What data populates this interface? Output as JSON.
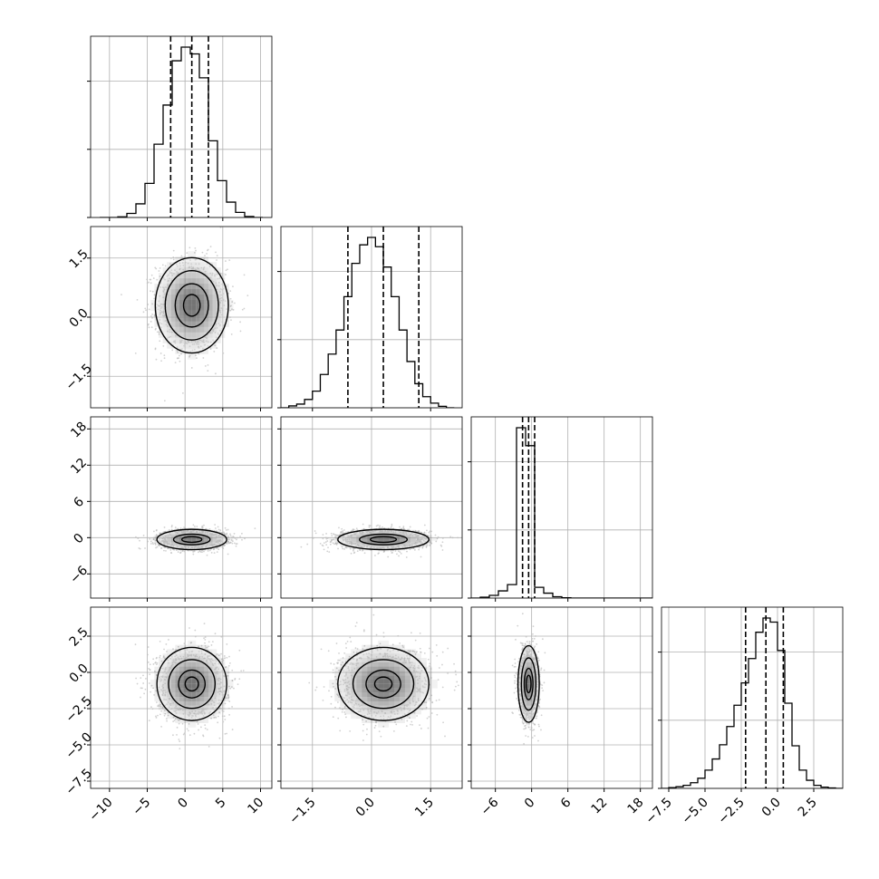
{
  "chart_data": {
    "type": "corner",
    "variables": [
      {
        "lim": [
          -12.5,
          11.5
        ],
        "ticks": [
          -10,
          -5,
          0,
          5,
          10
        ],
        "tick_labels": [
          "−10",
          "−5",
          "0",
          "5",
          "10"
        ],
        "quantiles": [
          -1.9,
          0.9,
          3.1
        ],
        "hist": {
          "edges": [
            -11.3,
            -10.1,
            -8.9,
            -7.7,
            -6.5,
            -5.3,
            -4.1,
            -2.9,
            -1.7,
            -0.5,
            0.7,
            1.9,
            3.1,
            4.3,
            5.5,
            6.7,
            7.9,
            9.1,
            10.3
          ],
          "counts": [
            0,
            0,
            2,
            12,
            40,
            100,
            215,
            330,
            460,
            500,
            480,
            410,
            225,
            108,
            45,
            15,
            3,
            0
          ]
        }
      },
      {
        "lim": [
          -2.3,
          2.3
        ],
        "ticks": [
          -1.5,
          0.0,
          1.5
        ],
        "tick_labels": [
          "−1.5",
          "0.0",
          "1.5"
        ],
        "quantiles": [
          -0.6,
          0.3,
          1.2
        ],
        "hist": {
          "edges": [
            -2.3,
            -2.1,
            -1.9,
            -1.7,
            -1.5,
            -1.3,
            -1.1,
            -0.9,
            -0.7,
            -0.5,
            -0.3,
            -0.1,
            0.1,
            0.3,
            0.5,
            0.7,
            0.9,
            1.1,
            1.3,
            1.5,
            1.7,
            1.9,
            2.1
          ],
          "counts": [
            0,
            10,
            20,
            45,
            90,
            180,
            290,
            420,
            600,
            780,
            880,
            920,
            870,
            760,
            600,
            420,
            250,
            130,
            60,
            25,
            8,
            0
          ]
        }
      },
      {
        "lim": [
          -10,
          20
        ],
        "ticks": [
          -6,
          0,
          6,
          12,
          18
        ],
        "tick_labels": [
          "−6",
          "0",
          "6",
          "12",
          "18"
        ],
        "quantiles": [
          -1.5,
          -0.5,
          0.5
        ],
        "hist": {
          "edges": [
            -10.0,
            -8.5,
            -7.0,
            -5.5,
            -4.0,
            -2.5,
            -1.0,
            0.5,
            2.0,
            3.5,
            5.0,
            6.5,
            8.0,
            9.5,
            11.0,
            12.5,
            14.0,
            15.5,
            17.0,
            18.5,
            20.0
          ],
          "counts": [
            0,
            10,
            30,
            80,
            150,
            1900,
            1700,
            120,
            55,
            15,
            4,
            0,
            0,
            0,
            0,
            0,
            0,
            0,
            0,
            0
          ]
        }
      },
      {
        "lim": [
          -8.0,
          4.5
        ],
        "ticks": [
          -7.5,
          -5.0,
          -2.5,
          0.0,
          2.5
        ],
        "tick_labels": [
          "−7.5",
          "−5.0",
          "−2.5",
          "0.0",
          "2.5"
        ],
        "quantiles": [
          -2.2,
          -0.8,
          0.4
        ],
        "hist": {
          "edges": [
            -8.0,
            -7.5,
            -7.0,
            -6.5,
            -6.0,
            -5.5,
            -5.0,
            -4.5,
            -4.0,
            -3.5,
            -3.0,
            -2.5,
            -2.0,
            -1.5,
            -1.0,
            -0.5,
            0.0,
            0.5,
            1.0,
            1.5,
            2.0,
            2.5,
            3.0,
            3.5,
            4.0,
            4.5
          ],
          "counts": [
            0,
            4,
            8,
            15,
            28,
            50,
            90,
            145,
            215,
            305,
            410,
            520,
            640,
            770,
            840,
            820,
            680,
            420,
            210,
            90,
            40,
            15,
            6,
            2,
            0
          ]
        }
      }
    ],
    "panels": [
      {
        "row": 1,
        "col": 0,
        "x_var": 0,
        "y_var": 1,
        "center": [
          0.9,
          0.3
        ],
        "sigma": [
          2.2,
          0.55
        ],
        "rho": 0.0,
        "levels": [
          0.5,
          1.0,
          1.6,
          2.2
        ]
      },
      {
        "row": 2,
        "col": 0,
        "x_var": 0,
        "y_var": 2,
        "center": [
          0.9,
          -0.3
        ],
        "sigma": [
          2.2,
          0.8
        ],
        "rho": 0.0,
        "levels": [
          0.6,
          1.1,
          2.1
        ]
      },
      {
        "row": 2,
        "col": 1,
        "x_var": 1,
        "y_var": 2,
        "center": [
          0.3,
          -0.3
        ],
        "sigma": [
          0.55,
          0.8
        ],
        "rho": 0.0,
        "levels": [
          0.6,
          1.1,
          2.1
        ]
      },
      {
        "row": 3,
        "col": 0,
        "x_var": 0,
        "y_var": 3,
        "center": [
          0.9,
          -0.8
        ],
        "sigma": [
          2.2,
          1.2
        ],
        "rho": 0.0,
        "levels": [
          0.4,
          0.8,
          1.4,
          2.1
        ]
      },
      {
        "row": 3,
        "col": 1,
        "x_var": 1,
        "y_var": 3,
        "center": [
          0.3,
          -0.8
        ],
        "sigma": [
          0.55,
          1.2
        ],
        "rho": 0.0,
        "levels": [
          0.4,
          0.8,
          1.4,
          2.1
        ]
      },
      {
        "row": 3,
        "col": 2,
        "x_var": 2,
        "y_var": 3,
        "center": [
          -0.5,
          -0.8
        ],
        "sigma": [
          0.8,
          1.2
        ],
        "rho": 0.0,
        "levels": [
          0.5,
          0.9,
          1.5,
          2.2
        ]
      }
    ],
    "grid": true,
    "colors": {
      "line": "#000000",
      "grid": "#b0b0b0",
      "points": "#bdbdbd",
      "density": "#000000"
    }
  }
}
